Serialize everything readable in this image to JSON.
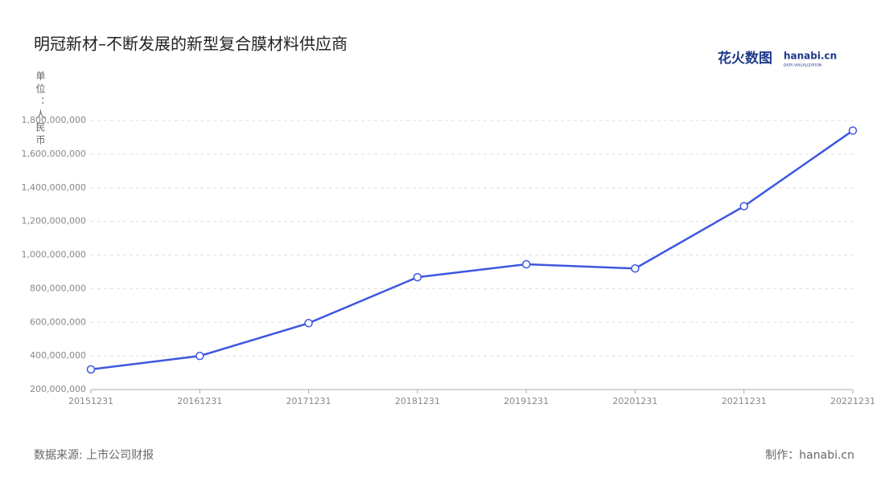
{
  "chart_data": {
    "type": "line",
    "title": "明冠新材–不断发展的新型复合膜材料供应商",
    "y_label": "单位：人民币",
    "source": "数据来源: 上市公司财报",
    "credit": "制作：hanabi.cn",
    "logo": {
      "name": "花火数图",
      "brand": "hanabi.cn",
      "tagline": "DATA VISUALIZATION"
    },
    "categories": [
      "20151231",
      "20161231",
      "20171231",
      "20181231",
      "20191231",
      "20201231",
      "20211231",
      "20221231"
    ],
    "series": [
      {
        "name": "人民币",
        "color": "#3d57e0",
        "values": [
          320000000,
          400000000,
          595000000,
          868000000,
          945000000,
          920000000,
          1290000000,
          1740000000
        ]
      }
    ],
    "ylim": [
      200000000,
      1800000000
    ],
    "yticks": [
      {
        "value": 200000000,
        "label": "200,000,000"
      },
      {
        "value": 400000000,
        "label": "400,000,000"
      },
      {
        "value": 600000000,
        "label": "600,000,000"
      },
      {
        "value": 800000000,
        "label": "800,000,000"
      },
      {
        "value": 1000000000,
        "label": "1,000,000,000"
      },
      {
        "value": 1200000000,
        "label": "1,200,000,000"
      },
      {
        "value": 1400000000,
        "label": "1,400,000,000"
      },
      {
        "value": 1600000000,
        "label": "1,600,000,000"
      },
      {
        "value": 1800000000,
        "label": "1,800,000,000"
      }
    ],
    "grid": true
  }
}
